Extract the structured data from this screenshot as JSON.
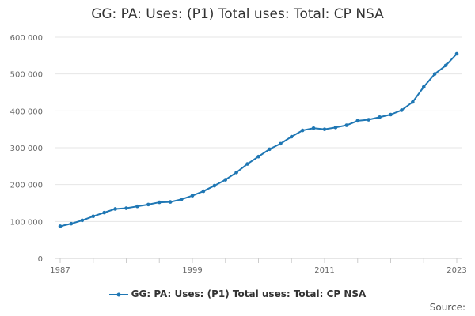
{
  "chart_data": {
    "type": "line",
    "title": "GG: PA: Uses: (P1) Total uses: Total: CP NSA",
    "xlabel": "",
    "ylabel": "",
    "xlim": [
      1987,
      2023
    ],
    "ylim": [
      0,
      600000
    ],
    "y_ticks": [
      0,
      100000,
      200000,
      300000,
      400000,
      500000,
      600000
    ],
    "y_tick_labels": [
      "0",
      "100 000",
      "200 000",
      "300 000",
      "400 000",
      "500 000",
      "600 000"
    ],
    "x_ticks": [
      1987,
      1999,
      2011,
      2023
    ],
    "x_tick_labels": [
      "1987",
      "1999",
      "2011",
      "2023"
    ],
    "grid": true,
    "legend_position": "bottom",
    "series": [
      {
        "name": "GG: PA: Uses: (P1) Total uses: Total: CP NSA",
        "color": "#1f77b4",
        "x": [
          1987,
          1988,
          1989,
          1990,
          1991,
          1992,
          1993,
          1994,
          1995,
          1996,
          1997,
          1998,
          1999,
          2000,
          2001,
          2002,
          2003,
          2004,
          2005,
          2006,
          2007,
          2008,
          2009,
          2010,
          2011,
          2012,
          2013,
          2014,
          2015,
          2016,
          2017,
          2018,
          2019,
          2020,
          2021,
          2022,
          2023
        ],
        "values": [
          87000,
          94000,
          103000,
          114000,
          124000,
          134000,
          136000,
          141000,
          146000,
          152000,
          153000,
          160000,
          170000,
          182000,
          197000,
          213000,
          233000,
          256000,
          276000,
          296000,
          311000,
          330000,
          347000,
          353000,
          350000,
          355000,
          361000,
          373000,
          376000,
          383000,
          390000,
          402000,
          424000,
          465000,
          500000,
          523000,
          555000
        ]
      }
    ]
  },
  "source_label": "Source:"
}
